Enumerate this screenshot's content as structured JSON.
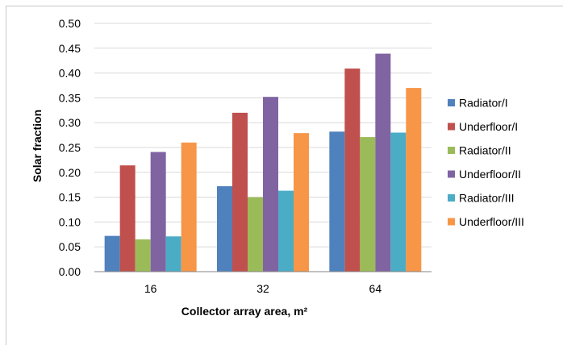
{
  "chart_data": {
    "type": "bar",
    "title": "",
    "xlabel": "Collector array area, m²",
    "ylabel": "Solar fraction",
    "categories": [
      "16",
      "32",
      "64"
    ],
    "ylim": [
      0,
      0.5
    ],
    "yticks": [
      "0.00",
      "0.05",
      "0.10",
      "0.15",
      "0.20",
      "0.25",
      "0.30",
      "0.35",
      "0.40",
      "0.45",
      "0.50"
    ],
    "grid": true,
    "legend_position": "right",
    "series": [
      {
        "name": "Radiator/I",
        "color": "#4f81bd",
        "values": [
          0.072,
          0.172,
          0.282
        ]
      },
      {
        "name": "Underfloor/I",
        "color": "#c0504d",
        "values": [
          0.214,
          0.32,
          0.409
        ]
      },
      {
        "name": "Radiator/II",
        "color": "#9bbb59",
        "values": [
          0.065,
          0.15,
          0.271
        ]
      },
      {
        "name": "Underfloor/II",
        "color": "#8064a2",
        "values": [
          0.241,
          0.352,
          0.439
        ]
      },
      {
        "name": "Radiator/III",
        "color": "#4bacc6",
        "values": [
          0.071,
          0.163,
          0.28
        ]
      },
      {
        "name": "Underfloor/III",
        "color": "#f79646",
        "values": [
          0.26,
          0.279,
          0.37
        ]
      }
    ]
  }
}
